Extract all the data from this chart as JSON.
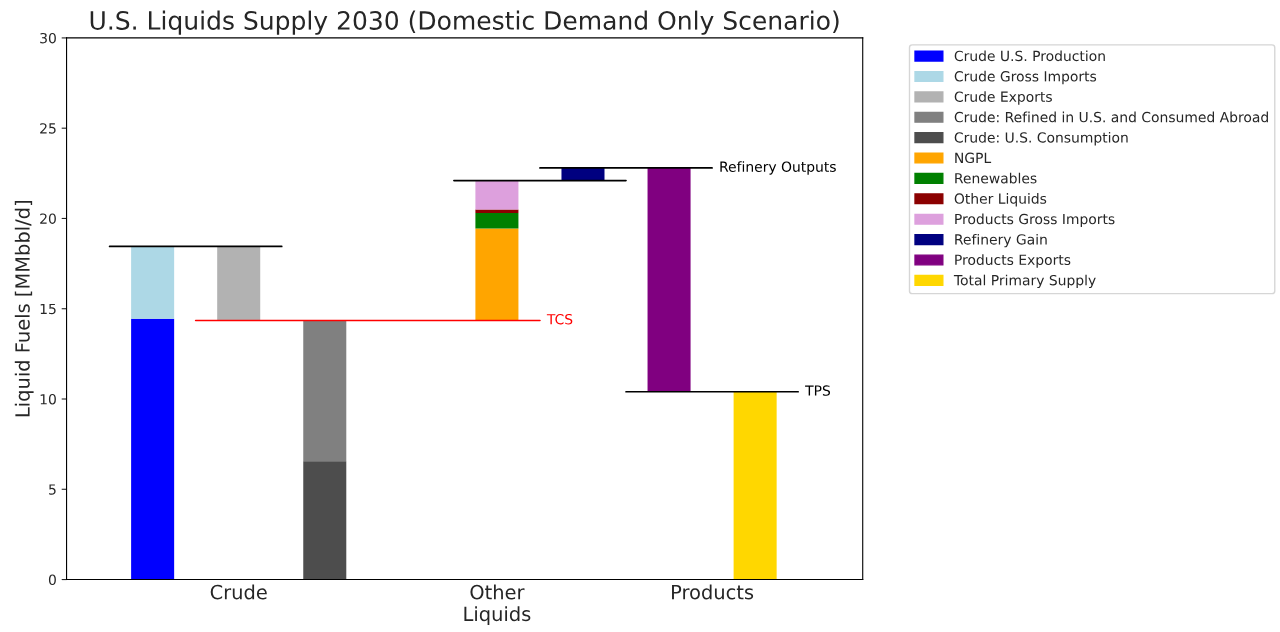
{
  "chart_data": {
    "type": "bar",
    "title": "U.S. Liquids Supply 2030 (Domestic Demand Only Scenario)",
    "ylabel": "Liquid Fuels [MMbbl/d]",
    "categories": [
      null,
      null,
      null,
      "Crude",
      null,
      null,
      null,
      null,
      null,
      "Other\nLiquids",
      null,
      null,
      null,
      null,
      "Products",
      null,
      null
    ],
    "ylim": [
      0,
      30
    ],
    "yticks": [
      0,
      5,
      10,
      15,
      20,
      25,
      30
    ],
    "grid": false,
    "legend": "top right",
    "series": [
      {
        "name": "Crude U.S. Production",
        "color": "#0000ff",
        "values": [
          null,
          14.45,
          null,
          null,
          null,
          null,
          null,
          null,
          null,
          null,
          null,
          null,
          null,
          null,
          null,
          null,
          null
        ],
        "base": [
          null,
          0,
          null,
          null,
          null,
          null,
          null,
          null,
          null,
          null,
          null,
          null,
          null,
          null,
          null,
          null,
          null
        ]
      },
      {
        "name": "Crude Gross Imports",
        "color": "#add8e6",
        "values": [
          null,
          4.0,
          null,
          null,
          null,
          null,
          null,
          null,
          null,
          null,
          null,
          null,
          null,
          null,
          null,
          null,
          null
        ],
        "base": [
          null,
          14.45,
          null,
          null,
          null,
          null,
          null,
          null,
          null,
          null,
          null,
          null,
          null,
          null,
          null,
          null,
          null
        ]
      },
      {
        "name": "Crude Exports",
        "color": "#b2b2b2",
        "values": [
          null,
          null,
          null,
          4.1,
          null,
          null,
          null,
          null,
          null,
          null,
          null,
          null,
          null,
          null,
          null,
          null,
          null
        ],
        "base": [
          null,
          null,
          null,
          14.35,
          null,
          null,
          null,
          null,
          null,
          null,
          null,
          null,
          null,
          null,
          null,
          null,
          null
        ]
      },
      {
        "name": "Crude: Refined in U.S. and Consumed Abroad",
        "color": "#808080",
        "values": [
          null,
          null,
          null,
          null,
          null,
          7.8,
          null,
          null,
          null,
          null,
          null,
          null,
          null,
          null,
          null,
          null,
          null
        ],
        "base": [
          null,
          null,
          null,
          null,
          null,
          6.55,
          null,
          null,
          null,
          null,
          null,
          null,
          null,
          null,
          null,
          null,
          null
        ]
      },
      {
        "name": "Crude: U.S. Consumption",
        "color": "#4d4d4d",
        "values": [
          null,
          null,
          null,
          null,
          null,
          6.55,
          null,
          null,
          null,
          null,
          null,
          null,
          null,
          null,
          null,
          null,
          null
        ],
        "base": [
          null,
          null,
          null,
          null,
          null,
          0,
          null,
          null,
          null,
          null,
          null,
          null,
          null,
          null,
          null,
          null,
          null
        ]
      },
      {
        "name": "NGPL",
        "color": "#ffa500",
        "values": [
          null,
          null,
          null,
          null,
          null,
          null,
          null,
          null,
          null,
          5.1,
          null,
          null,
          null,
          null,
          null,
          null,
          null
        ],
        "base": [
          null,
          null,
          null,
          null,
          null,
          null,
          null,
          null,
          null,
          14.35,
          null,
          null,
          null,
          null,
          null,
          null,
          null
        ]
      },
      {
        "name": "Renewables",
        "color": "#008000",
        "values": [
          null,
          null,
          null,
          null,
          null,
          null,
          null,
          null,
          null,
          0.85,
          null,
          null,
          null,
          null,
          null,
          null,
          null
        ],
        "base": [
          null,
          null,
          null,
          null,
          null,
          null,
          null,
          null,
          null,
          19.45,
          null,
          null,
          null,
          null,
          null,
          null,
          null
        ]
      },
      {
        "name": "Other Liquids",
        "color": "#8b0000",
        "values": [
          null,
          null,
          null,
          null,
          null,
          null,
          null,
          null,
          null,
          0.2,
          null,
          null,
          null,
          null,
          null,
          null,
          null
        ],
        "base": [
          null,
          null,
          null,
          null,
          null,
          null,
          null,
          null,
          null,
          20.3,
          null,
          null,
          null,
          null,
          null,
          null,
          null
        ]
      },
      {
        "name": "Products Gross Imports",
        "color": "#dda0dd",
        "values": [
          null,
          null,
          null,
          null,
          null,
          null,
          null,
          null,
          null,
          1.6,
          null,
          null,
          null,
          null,
          null,
          null,
          null
        ],
        "base": [
          null,
          null,
          null,
          null,
          null,
          null,
          null,
          null,
          null,
          20.5,
          null,
          null,
          null,
          null,
          null,
          null,
          null
        ]
      },
      {
        "name": "Refinery Gain",
        "color": "#000080",
        "values": [
          null,
          null,
          null,
          null,
          null,
          null,
          null,
          null,
          null,
          null,
          null,
          0.7,
          null,
          null,
          null,
          null,
          null
        ],
        "base": [
          null,
          null,
          null,
          null,
          null,
          null,
          null,
          null,
          null,
          null,
          null,
          22.1,
          null,
          null,
          null,
          null,
          null
        ]
      },
      {
        "name": "Products Exports",
        "color": "#800080",
        "values": [
          null,
          null,
          null,
          null,
          null,
          null,
          null,
          null,
          null,
          null,
          null,
          null,
          null,
          12.4,
          null,
          null,
          null
        ],
        "base": [
          null,
          null,
          null,
          null,
          null,
          null,
          null,
          null,
          null,
          null,
          null,
          null,
          null,
          10.4,
          null,
          null,
          null
        ]
      },
      {
        "name": "Total Primary Supply",
        "color": "#ffd700",
        "values": [
          null,
          null,
          null,
          null,
          null,
          null,
          null,
          null,
          null,
          null,
          null,
          null,
          null,
          null,
          null,
          10.4,
          null
        ],
        "base": [
          null,
          null,
          null,
          null,
          null,
          null,
          null,
          null,
          null,
          null,
          null,
          null,
          null,
          null,
          null,
          0,
          null
        ]
      },
      {
        "type": "line",
        "color": "#000000",
        "values": [
          18.45,
          18.45,
          18.45,
          18.45,
          18.45,
          null,
          null,
          null,
          null,
          null,
          null,
          null,
          null,
          null,
          null,
          null,
          null
        ]
      },
      {
        "type": "line",
        "name": "TCS",
        "color": "#ff0000",
        "values": [
          null,
          null,
          14.35,
          14.35,
          14.35,
          14.35,
          14.35,
          14.35,
          14.35,
          14.35,
          14.35,
          null,
          null,
          null,
          null,
          null,
          null
        ]
      },
      {
        "type": "line",
        "color": "#000000",
        "values": [
          null,
          null,
          null,
          null,
          null,
          null,
          null,
          null,
          22.1,
          22.1,
          22.1,
          22.1,
          22.1,
          null,
          null,
          null,
          null
        ]
      },
      {
        "type": "line",
        "name": "Refinery Outputs",
        "color": "#000000",
        "values": [
          null,
          null,
          null,
          null,
          null,
          null,
          null,
          null,
          null,
          null,
          22.8,
          22.8,
          22.8,
          22.8,
          22.8,
          null,
          null
        ]
      },
      {
        "type": "line",
        "name": "TPS",
        "color": "#000000",
        "values": [
          null,
          null,
          null,
          null,
          null,
          null,
          null,
          null,
          null,
          null,
          null,
          null,
          10.4,
          10.4,
          10.4,
          10.4,
          10.4
        ]
      }
    ]
  }
}
